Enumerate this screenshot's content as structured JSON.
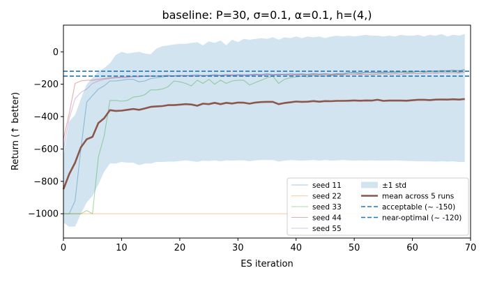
{
  "chart_data": {
    "type": "line",
    "title": "baseline: P=30, σ=0.1, α=0.1, h=(4,)",
    "xlabel": "ES iteration",
    "ylabel": "Return (↑ better)",
    "xlim": [
      0,
      70
    ],
    "ylim": [
      -1150,
      165
    ],
    "xticks": [
      0,
      10,
      20,
      30,
      40,
      50,
      60,
      70
    ],
    "yticks": [
      -1000,
      -800,
      -600,
      -400,
      -200,
      0
    ],
    "grid": false,
    "legend_position": "lower-right",
    "series": [
      {
        "name": "seed 11",
        "color": "#1f77b4",
        "style": "thin",
        "x": [
          0,
          1,
          2,
          3,
          4,
          5,
          6,
          7,
          8,
          9,
          10,
          11,
          12,
          13,
          14,
          15,
          16,
          17,
          18,
          19,
          20,
          21,
          22,
          23,
          24,
          25,
          26,
          27,
          28,
          29,
          30,
          31,
          32,
          33,
          34,
          35,
          36,
          37,
          38,
          39,
          40,
          41,
          42,
          43,
          44,
          45,
          46,
          47,
          48,
          49,
          50,
          51,
          52,
          53,
          54,
          55,
          56,
          57,
          58,
          59,
          60,
          61,
          62,
          63,
          64,
          65,
          66,
          67,
          68,
          69
        ],
        "values": [
          -1000,
          -1000,
          -920,
          -600,
          -310,
          -270,
          -230,
          -210,
          -180,
          -180,
          -175,
          -170,
          -170,
          -185,
          -180,
          -165,
          -160,
          -155,
          -150,
          -148,
          -145,
          -150,
          -145,
          -140,
          -150,
          -145,
          -140,
          -145,
          -140,
          -145,
          -140,
          -142,
          -140,
          -138,
          -140,
          -135,
          -140,
          -138,
          -140,
          -135,
          -138,
          -135,
          -140,
          -135,
          -138,
          -135,
          -140,
          -135,
          -138,
          -130,
          -125,
          -130,
          -125,
          -128,
          -125,
          -125,
          -128,
          -125,
          -125,
          -128,
          -125,
          -122,
          -125,
          -120,
          -125,
          -120,
          -122,
          -120,
          -125,
          -118
        ]
      },
      {
        "name": "seed 22",
        "color": "#ff7f0e",
        "style": "thin",
        "x": [
          0,
          1,
          2,
          3,
          4,
          5,
          6,
          7,
          8,
          9,
          10,
          11,
          12,
          13,
          14,
          15,
          16,
          17,
          18,
          19,
          20,
          21,
          22,
          23,
          24,
          25,
          26,
          27,
          28,
          29,
          30,
          31,
          32,
          33,
          34,
          35,
          36,
          37,
          38,
          39,
          40,
          41,
          42,
          43,
          44,
          45,
          46,
          47,
          48,
          49,
          50,
          51,
          52,
          53,
          54,
          55,
          56,
          57,
          58,
          59,
          60,
          61,
          62,
          63,
          64,
          65,
          66,
          67,
          68,
          69
        ],
        "values": [
          -1000,
          -1000,
          -1000,
          -1000,
          -1000,
          -1000,
          -1000,
          -1000,
          -1000,
          -1000,
          -1000,
          -1000,
          -1000,
          -1000,
          -1000,
          -1000,
          -1000,
          -1000,
          -1000,
          -1000,
          -1000,
          -1000,
          -1000,
          -1000,
          -1000,
          -1000,
          -1000,
          -1000,
          -1000,
          -1000,
          -1000,
          -1000,
          -1000,
          -1000,
          -1000,
          -1000,
          -1000,
          -1000,
          -1000,
          -1000,
          -1000,
          -1000,
          -1000,
          -1000,
          -1000,
          -1000,
          -1000,
          -1000,
          -1000,
          -1000,
          -1000,
          -1000,
          -1000,
          -1000,
          -1000,
          -1000,
          -1000,
          -1000,
          -1000,
          -1000,
          -1000,
          -1000,
          -1000,
          -1000,
          -1000,
          -1000,
          -1000,
          -1000,
          -1000,
          -1000
        ]
      },
      {
        "name": "seed 33",
        "color": "#2ca02c",
        "style": "thin",
        "x": [
          0,
          1,
          2,
          3,
          4,
          5,
          6,
          7,
          8,
          9,
          10,
          11,
          12,
          13,
          14,
          15,
          16,
          17,
          18,
          19,
          20,
          21,
          22,
          23,
          24,
          25,
          26,
          27,
          28,
          29,
          30,
          31,
          32,
          33,
          34,
          35,
          36,
          37,
          38,
          39,
          40,
          41,
          42,
          43,
          44,
          45,
          46,
          47,
          48,
          49,
          50,
          51,
          52,
          53,
          54,
          55,
          56,
          57,
          58,
          59,
          60,
          61,
          62,
          63,
          64,
          65,
          66,
          67,
          68,
          69
        ],
        "values": [
          -1000,
          -1000,
          -1000,
          -1000,
          -980,
          -1000,
          -650,
          -520,
          -300,
          -300,
          -305,
          -300,
          -280,
          -275,
          -265,
          -235,
          -235,
          -230,
          -215,
          -180,
          -185,
          -195,
          -210,
          -175,
          -195,
          -170,
          -200,
          -175,
          -195,
          -180,
          -175,
          -175,
          -205,
          -190,
          -175,
          -160,
          -150,
          -195,
          -170,
          -160,
          -155,
          -150,
          -155,
          -145,
          -150,
          -150,
          -145,
          -140,
          -140,
          -130,
          -130,
          -135,
          -125,
          -130,
          -130,
          -130,
          -125,
          -128,
          -125,
          -125,
          -125,
          -120,
          -125,
          -118,
          -120,
          -115,
          -118,
          -112,
          -118,
          -108
        ]
      },
      {
        "name": "seed 44",
        "color": "#d62728",
        "style": "thin",
        "x": [
          0,
          1,
          2,
          3,
          4,
          5,
          6,
          7,
          8,
          9,
          10,
          11,
          12,
          13,
          14,
          15,
          16,
          17,
          18,
          19,
          20,
          21,
          22,
          23,
          24,
          25,
          26,
          27,
          28,
          29,
          30,
          31,
          32,
          33,
          34,
          35,
          36,
          37,
          38,
          39,
          40,
          41,
          42,
          43,
          44,
          45,
          46,
          47,
          48,
          49,
          50,
          51,
          52,
          53,
          54,
          55,
          56,
          57,
          58,
          59,
          60,
          61,
          62,
          63,
          64,
          65,
          66,
          67,
          68,
          69
        ],
        "values": [
          -540,
          -380,
          -195,
          -180,
          -175,
          -175,
          -170,
          -165,
          -160,
          -158,
          -155,
          -155,
          -150,
          -150,
          -150,
          -148,
          -150,
          -148,
          -145,
          -150,
          -148,
          -145,
          -150,
          -148,
          -145,
          -148,
          -145,
          -148,
          -145,
          -142,
          -145,
          -148,
          -145,
          -142,
          -145,
          -140,
          -145,
          -142,
          -140,
          -145,
          -142,
          -140,
          -145,
          -140,
          -142,
          -140,
          -145,
          -140,
          -142,
          -140,
          -138,
          -140,
          -138,
          -140,
          -138,
          -135,
          -138,
          -135,
          -138,
          -135,
          -132,
          -135,
          -132,
          -130,
          -132,
          -128,
          -130,
          -128,
          -130,
          -125
        ]
      },
      {
        "name": "seed 55",
        "color": "#9467bd",
        "style": "thin",
        "x": [
          0,
          1,
          2,
          3,
          4,
          5,
          6,
          7,
          8,
          9,
          10,
          11,
          12,
          13,
          14,
          15,
          16,
          17,
          18,
          19,
          20,
          21,
          22,
          23,
          24,
          25,
          26,
          27,
          28,
          29,
          30,
          31,
          32,
          33,
          34,
          35,
          36,
          37,
          38,
          39,
          40,
          41,
          42,
          43,
          44,
          45,
          46,
          47,
          48,
          49,
          50,
          51,
          52,
          53,
          54,
          55,
          56,
          57,
          58,
          59,
          60,
          61,
          62,
          63,
          64,
          65,
          66,
          67,
          68,
          69
        ],
        "values": [
          -600,
          -410,
          -290,
          -250,
          -230,
          -195,
          -180,
          -170,
          -165,
          -160,
          -160,
          -158,
          -155,
          -155,
          -150,
          -152,
          -150,
          -148,
          -150,
          -148,
          -150,
          -148,
          -145,
          -150,
          -148,
          -145,
          -148,
          -145,
          -145,
          -148,
          -145,
          -142,
          -145,
          -140,
          -142,
          -140,
          -142,
          -140,
          -138,
          -140,
          -138,
          -140,
          -138,
          -135,
          -138,
          -135,
          -138,
          -135,
          -132,
          -130,
          -128,
          -130,
          -128,
          -125,
          -128,
          -125,
          -125,
          -122,
          -125,
          -122,
          -120,
          -122,
          -120,
          -118,
          -120,
          -118,
          -115,
          -118,
          -115,
          -112
        ]
      },
      {
        "name": "mean across 5 runs",
        "color": "#8c564b",
        "style": "thick",
        "x": [
          0,
          1,
          2,
          3,
          4,
          5,
          6,
          7,
          8,
          9,
          10,
          11,
          12,
          13,
          14,
          15,
          16,
          17,
          18,
          19,
          20,
          21,
          22,
          23,
          24,
          25,
          26,
          27,
          28,
          29,
          30,
          31,
          32,
          33,
          34,
          35,
          36,
          37,
          38,
          39,
          40,
          41,
          42,
          43,
          44,
          45,
          46,
          47,
          48,
          49,
          50,
          51,
          52,
          53,
          54,
          55,
          56,
          57,
          58,
          59,
          60,
          61,
          62,
          63,
          64,
          65,
          66,
          67,
          68,
          69
        ],
        "values": [
          -848,
          -755,
          -685,
          -590,
          -540,
          -525,
          -440,
          -410,
          -360,
          -365,
          -363,
          -358,
          -353,
          -358,
          -350,
          -340,
          -337,
          -335,
          -329,
          -329,
          -326,
          -323,
          -325,
          -333,
          -320,
          -323,
          -315,
          -323,
          -315,
          -319,
          -313,
          -314,
          -320,
          -313,
          -310,
          -309,
          -309,
          -323,
          -316,
          -312,
          -307,
          -309,
          -308,
          -304,
          -308,
          -304,
          -305,
          -303,
          -303,
          -302,
          -300,
          -302,
          -300,
          -301,
          -296,
          -303,
          -301,
          -301,
          -301,
          -302,
          -299,
          -296,
          -296,
          -298,
          -295,
          -294,
          -295,
          -293,
          -295,
          -291
        ]
      }
    ],
    "band": {
      "name": "±1 std",
      "color": "#1f77b4",
      "x": [
        0,
        1,
        2,
        3,
        4,
        5,
        6,
        7,
        8,
        9,
        10,
        11,
        12,
        13,
        14,
        15,
        16,
        17,
        18,
        19,
        20,
        21,
        22,
        23,
        24,
        25,
        26,
        27,
        28,
        29,
        30,
        31,
        32,
        33,
        34,
        35,
        36,
        37,
        38,
        39,
        40,
        41,
        42,
        43,
        44,
        45,
        46,
        47,
        48,
        49,
        50,
        51,
        52,
        53,
        54,
        55,
        56,
        57,
        58,
        59,
        60,
        61,
        62,
        63,
        64,
        65,
        66,
        67,
        68,
        69
      ],
      "upper": [
        -640,
        -430,
        -390,
        -290,
        -200,
        -160,
        -120,
        -100,
        -70,
        -20,
        0,
        -10,
        -5,
        0,
        -10,
        -15,
        20,
        35,
        40,
        45,
        50,
        50,
        55,
        60,
        40,
        65,
        55,
        70,
        40,
        75,
        60,
        80,
        75,
        80,
        85,
        80,
        90,
        75,
        90,
        85,
        95,
        85,
        95,
        90,
        95,
        85,
        95,
        100,
        95,
        100,
        95,
        100,
        105,
        100,
        100,
        95,
        100,
        95,
        105,
        100,
        100,
        105,
        95,
        105,
        100,
        110,
        95,
        105,
        100,
        110
      ],
      "lower": [
        -1055,
        -1080,
        -1080,
        -1000,
        -930,
        -890,
        -820,
        -740,
        -690,
        -690,
        -680,
        -685,
        -685,
        -700,
        -690,
        -690,
        -680,
        -680,
        -678,
        -678,
        -675,
        -670,
        -675,
        -680,
        -672,
        -675,
        -670,
        -676,
        -670,
        -672,
        -670,
        -670,
        -676,
        -670,
        -668,
        -668,
        -668,
        -678,
        -672,
        -668,
        -670,
        -672,
        -670,
        -668,
        -672,
        -668,
        -672,
        -670,
        -668,
        -670,
        -672,
        -670,
        -672,
        -670,
        -672,
        -672,
        -672,
        -670,
        -672,
        -674,
        -674,
        -676,
        -676,
        -676,
        -678,
        -676,
        -678,
        -676,
        -680,
        -680
      ]
    },
    "reference_lines": [
      {
        "name": "acceptable (~ -150)",
        "value": -150,
        "color": "#1f77b4",
        "style": "dashed"
      },
      {
        "name": "near-optimal (~ -120)",
        "value": -120,
        "color": "#1f77b4",
        "style": "dashed"
      }
    ]
  }
}
